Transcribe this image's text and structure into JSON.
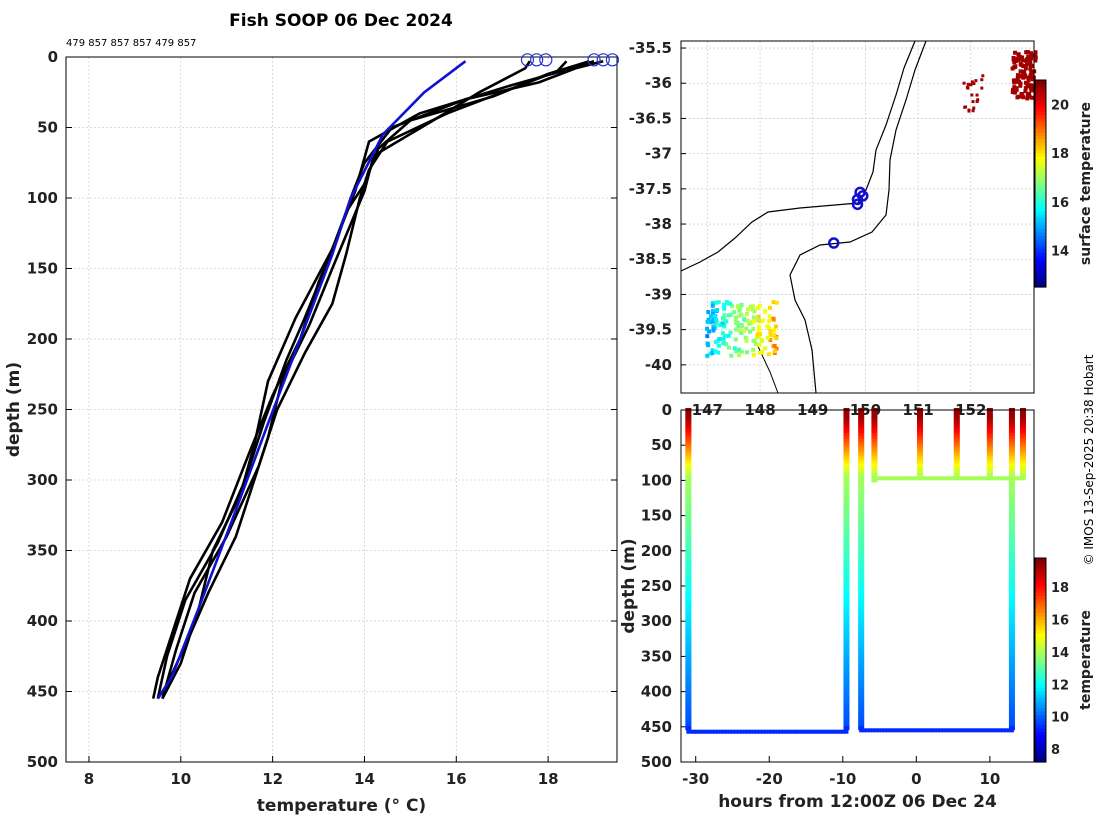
{
  "title": "Fish SOOP 06 Dec 2024",
  "id_labels": "479 857 857 857 479 857",
  "copyright": "© IMOS 13-Sep-2025 20:38 Hobart",
  "chart_data": [
    {
      "type": "line",
      "name": "profiles",
      "xlabel": "temperature (° C)",
      "ylabel": "depth (m)",
      "xlim": [
        7.5,
        19.5
      ],
      "ylim": [
        0,
        500
      ],
      "xticks": [
        8,
        10,
        12,
        14,
        16,
        18
      ],
      "yticks": [
        0,
        50,
        100,
        150,
        200,
        250,
        300,
        350,
        400,
        450,
        500
      ],
      "series": [
        {
          "name": "p1",
          "color": "#000000",
          "points": [
            [
              17.6,
              3
            ],
            [
              17.5,
              8
            ],
            [
              16.5,
              25
            ],
            [
              15.5,
              45
            ],
            [
              14.2,
              70
            ],
            [
              14.0,
              95
            ],
            [
              13.3,
              150
            ],
            [
              12.8,
              190
            ],
            [
              12.2,
              230
            ],
            [
              11.9,
              270
            ],
            [
              11.6,
              300
            ],
            [
              11.2,
              340
            ],
            [
              10.6,
              380
            ],
            [
              10.2,
              410
            ],
            [
              9.7,
              445
            ],
            [
              9.5,
              455
            ]
          ]
        },
        {
          "name": "p2",
          "color": "#000000",
          "points": [
            [
              18.4,
              3
            ],
            [
              18.2,
              10
            ],
            [
              17.0,
              25
            ],
            [
              15.8,
              40
            ],
            [
              14.5,
              60
            ],
            [
              14.1,
              80
            ],
            [
              13.9,
              100
            ],
            [
              13.6,
              140
            ],
            [
              13.3,
              175
            ],
            [
              12.7,
              210
            ],
            [
              12.1,
              250
            ],
            [
              11.7,
              290
            ],
            [
              11.0,
              340
            ],
            [
              10.3,
              380
            ],
            [
              9.9,
              420
            ],
            [
              9.6,
              455
            ]
          ]
        },
        {
          "name": "p3",
          "color": "#000000",
          "points": [
            [
              19.0,
              3
            ],
            [
              18.3,
              10
            ],
            [
              17.2,
              20
            ],
            [
              15.2,
              40
            ],
            [
              14.1,
              60
            ],
            [
              13.8,
              95
            ],
            [
              13.5,
              120
            ],
            [
              13.0,
              160
            ],
            [
              12.6,
              200
            ],
            [
              12.0,
              240
            ],
            [
              11.5,
              280
            ],
            [
              10.9,
              330
            ],
            [
              10.2,
              370
            ],
            [
              9.8,
              410
            ],
            [
              9.5,
              440
            ],
            [
              9.4,
              455
            ]
          ]
        },
        {
          "name": "p4",
          "color": "#000000",
          "points": [
            [
              19.2,
              3
            ],
            [
              18.6,
              8
            ],
            [
              17.8,
              18
            ],
            [
              16.2,
              30
            ],
            [
              14.6,
              50
            ],
            [
              14.0,
              75
            ],
            [
              13.7,
              100
            ],
            [
              13.4,
              130
            ],
            [
              12.5,
              185
            ],
            [
              11.9,
              230
            ],
            [
              11.6,
              275
            ],
            [
              11.3,
              310
            ],
            [
              10.7,
              350
            ],
            [
              10.4,
              390
            ],
            [
              10.0,
              430
            ],
            [
              9.6,
              455
            ]
          ]
        },
        {
          "name": "p5",
          "color": "#000000",
          "points": [
            [
              18.9,
              3
            ],
            [
              18.0,
              12
            ],
            [
              16.8,
              28
            ],
            [
              15.0,
              45
            ],
            [
              14.3,
              65
            ],
            [
              14.0,
              90
            ],
            [
              13.6,
              110
            ],
            [
              13.2,
              145
            ],
            [
              12.7,
              185
            ],
            [
              12.3,
              215
            ],
            [
              11.8,
              260
            ],
            [
              11.4,
              300
            ],
            [
              10.8,
              345
            ],
            [
              10.1,
              385
            ],
            [
              9.7,
              425
            ],
            [
              9.5,
              455
            ]
          ]
        }
      ]
    },
    {
      "type": "line",
      "name": "mean_profile",
      "color": "#1010d0",
      "points": [
        [
          16.2,
          3
        ],
        [
          15.3,
          25
        ],
        [
          14.4,
          55
        ],
        [
          13.7,
          100
        ],
        [
          13.3,
          140
        ],
        [
          12.6,
          200
        ],
        [
          11.9,
          260
        ],
        [
          11.1,
          330
        ],
        [
          10.4,
          390
        ],
        [
          9.8,
          440
        ],
        [
          9.5,
          455
        ]
      ]
    },
    {
      "type": "scatter",
      "name": "map",
      "ylabel": "surface temperature",
      "xlim": [
        146.5,
        153.2
      ],
      "ylim": [
        -40.4,
        -35.4
      ],
      "yticks": [
        -35.5,
        -36,
        -36.5,
        -37,
        -37.5,
        -38,
        -38.5,
        -39,
        -39.5,
        -40
      ],
      "xticks": [
        147,
        148,
        149,
        150,
        151,
        152
      ],
      "colorbar_ticks": [
        14,
        16,
        18,
        20
      ],
      "colorbar_range": [
        12.5,
        21
      ],
      "stations": [
        [
          149.85,
          -37.65
        ],
        [
          149.95,
          -37.6
        ],
        [
          149.9,
          -37.55
        ],
        [
          149.4,
          -38.27
        ],
        [
          149.85,
          -37.72
        ]
      ]
    },
    {
      "type": "scatter",
      "name": "time_depth",
      "xlabel": "hours from 12:00Z 06 Dec 24",
      "ylabel": "depth (m)",
      "colorbar_label": "temperature",
      "xlim": [
        -32,
        16
      ],
      "ylim": [
        0,
        500
      ],
      "xticks": [
        -30,
        -20,
        -10,
        0,
        10
      ],
      "yticks": [
        0,
        50,
        100,
        150,
        200,
        250,
        300,
        350,
        400,
        450,
        500
      ],
      "colorbar_ticks": [
        8,
        10,
        12,
        14,
        16,
        18
      ],
      "colorbar_range": [
        7.2,
        19.8
      ],
      "casts": [
        -31,
        -9.5,
        -7.5,
        0.5,
        5.5,
        10,
        13,
        14.5
      ]
    }
  ]
}
